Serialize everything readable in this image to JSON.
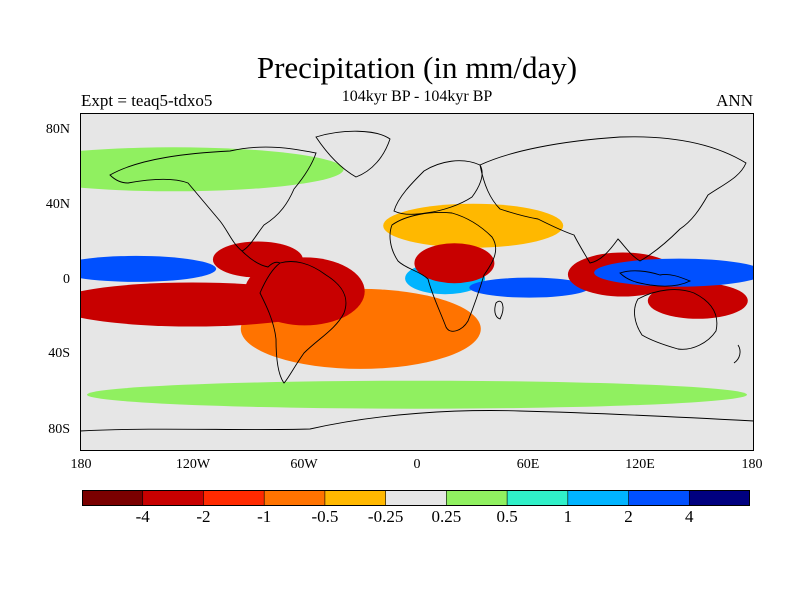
{
  "title": "Precipitation (in mm/day)",
  "subtitle": "104kyr BP - 104kyr BP",
  "experiment_label": "Expt = teaq5-tdxo5",
  "season_label": "ANN",
  "axes": {
    "lat_ticks": [
      "80N",
      "40N",
      "0",
      "40S",
      "80S"
    ],
    "lon_ticks": [
      "180",
      "120W",
      "60W",
      "0",
      "60E",
      "120E",
      "180"
    ]
  },
  "colorbar": {
    "colors": [
      "#7a0000",
      "#c80000",
      "#ff2a00",
      "#ff7300",
      "#ffb800",
      "#e6e6e6",
      "#90f060",
      "#30f0c8",
      "#00b4ff",
      "#0050ff",
      "#000080"
    ],
    "labels": [
      "-4",
      "-2",
      "-1",
      "-0.5",
      "-0.25",
      "0.25",
      "0.5",
      "1",
      "2",
      "4"
    ]
  },
  "chart_data": {
    "type": "heatmap",
    "variable": "Precipitation difference",
    "units": "mm/day",
    "levels": [
      -4,
      -2,
      -1,
      -0.5,
      -0.25,
      0.25,
      0.5,
      1,
      2,
      4
    ],
    "lat_range": [
      -90,
      90
    ],
    "lon_range": [
      -180,
      180
    ],
    "fields": [
      {
        "lon": -150,
        "lat": 7,
        "value": 3.5
      },
      {
        "lon": 140,
        "lat": 5,
        "value": 3.5
      },
      {
        "lon": 15,
        "lat": 2,
        "value": 1.5
      },
      {
        "lon": 60,
        "lat": -3,
        "value": 2.5
      },
      {
        "lon": -120,
        "lat": -12,
        "value": -3
      },
      {
        "lon": -60,
        "lat": -5,
        "value": -3
      },
      {
        "lon": -85,
        "lat": 12,
        "value": -3
      },
      {
        "lon": 110,
        "lat": 4,
        "value": -3
      },
      {
        "lon": 20,
        "lat": 10,
        "value": -2
      },
      {
        "lon": 150,
        "lat": -10,
        "value": -2
      },
      {
        "lon": -30,
        "lat": -25,
        "value": -0.8
      },
      {
        "lon": 30,
        "lat": 30,
        "value": -0.35
      },
      {
        "lon": -130,
        "lat": 60,
        "value": 0.4
      },
      {
        "lon": 0,
        "lat": -60,
        "value": 0.4
      }
    ]
  }
}
